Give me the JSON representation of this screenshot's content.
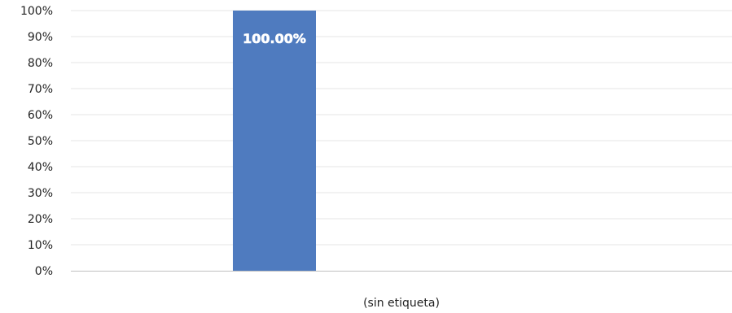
{
  "chart_data": {
    "type": "bar",
    "categories": [
      "(sin etiqueta)"
    ],
    "group_labels": [
      "",
      "(sin etiqueta)",
      ""
    ],
    "values": [
      100
    ],
    "data_labels": [
      "100.00%"
    ],
    "y_ticks": [
      "0%",
      "10%",
      "20%",
      "30%",
      "40%",
      "50%",
      "60%",
      "70%",
      "80%",
      "90%",
      "100%"
    ],
    "ylim": [
      0,
      100
    ],
    "grid": true,
    "legend": "none",
    "bar_color": "#4f7bbf",
    "grid_color": "#e6e6e6",
    "axis_color": "#bfbfbf"
  }
}
